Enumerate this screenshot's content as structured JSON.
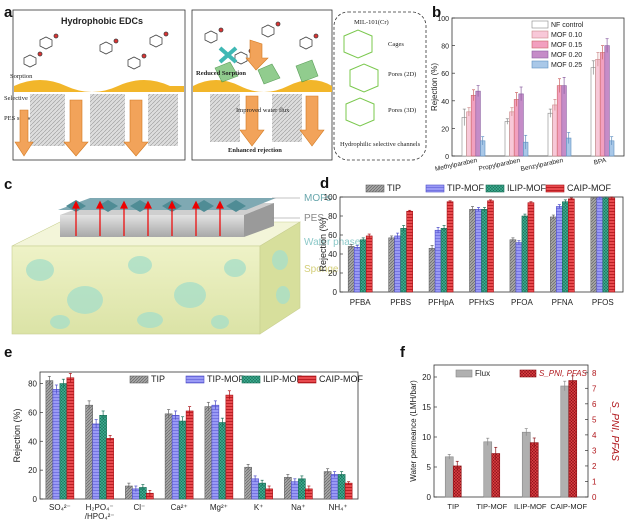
{
  "panels": {
    "a": {
      "label": "a",
      "top_left": "Hydrophobic EDCs",
      "sorption": "Sorption",
      "selective_pa": "Selective PA layer",
      "pes_support": "PES support",
      "reduced_sorption": "Reduced Sorption",
      "improved_flux": "Improved water flux",
      "enhanced_rejection": "Enhanced rejection",
      "mil": "MIL-101(Cr)",
      "cages": "Cages",
      "pores2d": "Pores (2D)",
      "pores3d": "Pores (3D)",
      "channels": "Hydrophilic selective channels"
    },
    "c": {
      "label": "c",
      "mofs": "MOFs",
      "pes": "PES",
      "water": "Water phase",
      "sponge": "Sponge"
    }
  },
  "colors": {
    "b": [
      "#ffffff",
      "#f8c8d8",
      "#f2a0bf",
      "#c58cc8",
      "#a9c8e8"
    ],
    "d_e": [
      "#a6a6a6",
      "#8e8ef0",
      "#2f9a80",
      "#e0272c"
    ],
    "f": [
      "#b0b0b0",
      "#c8242a"
    ]
  },
  "chart_data": [
    {
      "panel": "b",
      "type": "bar",
      "ylabel": "Rejection (%)",
      "ylim": [
        0,
        100
      ],
      "yticks": [
        0,
        20,
        40,
        60,
        80,
        100
      ],
      "categories": [
        "Methylparaben",
        "Propylparaben",
        "Benzylparaben",
        "BPA"
      ],
      "series": [
        {
          "name": "NF control",
          "values": [
            28,
            25,
            31,
            64
          ],
          "errors": [
            6,
            2,
            3,
            5
          ]
        },
        {
          "name": "MOF 0.10",
          "values": [
            32,
            32,
            37,
            70
          ],
          "errors": [
            3,
            3,
            4,
            5
          ]
        },
        {
          "name": "MOF 0.15",
          "values": [
            44,
            41,
            51,
            75
          ],
          "errors": [
            4,
            5,
            5,
            5
          ]
        },
        {
          "name": "MOF 0.20",
          "values": [
            47,
            45,
            51,
            80
          ],
          "errors": [
            4,
            5,
            6,
            5
          ]
        },
        {
          "name": "MOF 0.25",
          "values": [
            11,
            10,
            13,
            11
          ],
          "errors": [
            3,
            5,
            4,
            3
          ]
        }
      ]
    },
    {
      "panel": "d",
      "type": "bar",
      "ylabel": "Rejection (%)",
      "ylim": [
        0,
        100
      ],
      "yticks": [
        0,
        20,
        40,
        60,
        80,
        100
      ],
      "categories": [
        "PFBA",
        "PFBS",
        "PFHpA",
        "PFHxS",
        "PFOA",
        "PFNA",
        "PFOS"
      ],
      "series": [
        {
          "name": "TIP",
          "values": [
            48,
            57,
            46,
            87,
            55,
            79,
            99
          ],
          "errors": [
            2,
            2,
            3,
            3,
            2,
            2,
            1
          ]
        },
        {
          "name": "TIP-MOF",
          "values": [
            47,
            59,
            65,
            87,
            52,
            90,
            99
          ],
          "errors": [
            2,
            3,
            3,
            2,
            2,
            2,
            1
          ]
        },
        {
          "name": "ILIP-MOF",
          "values": [
            55,
            67,
            67,
            87,
            80,
            95,
            99
          ],
          "errors": [
            2,
            3,
            3,
            2,
            2,
            2,
            1
          ]
        },
        {
          "name": "CAIP-MOF",
          "values": [
            59,
            85,
            95,
            96,
            94,
            98,
            99
          ],
          "errors": [
            2,
            1,
            1,
            1,
            1,
            1,
            1
          ]
        }
      ]
    },
    {
      "panel": "e",
      "type": "bar",
      "ylabel": "Rejection (%)",
      "ylim": [
        0,
        88
      ],
      "yticks": [
        0,
        20,
        40,
        60,
        80
      ],
      "categories": [
        "SO₄²⁻",
        "H₂PO₄⁻/HPO₄²⁻",
        "Cl⁻",
        "Ca²⁺",
        "Mg²⁺",
        "K⁺",
        "Na⁺",
        "NH₄⁺"
      ],
      "tick_lines": [
        [
          "SO₄²⁻"
        ],
        [
          "H₂PO₄⁻",
          "/HPO₄²⁻"
        ],
        [
          "Cl⁻"
        ],
        [
          "Ca²⁺"
        ],
        [
          "Mg²⁺"
        ],
        [
          "K⁺"
        ],
        [
          "Na⁺"
        ],
        [
          "NH₄⁺"
        ]
      ],
      "series": [
        {
          "name": "TIP",
          "values": [
            82,
            65,
            9,
            59,
            64,
            22,
            15,
            19
          ],
          "errors": [
            3,
            3,
            2,
            3,
            3,
            2,
            2,
            2
          ]
        },
        {
          "name": "TIP-MOF",
          "values": [
            76,
            52,
            7,
            58,
            65,
            14,
            12,
            17
          ],
          "errors": [
            3,
            3,
            2,
            3,
            3,
            2,
            2,
            2
          ]
        },
        {
          "name": "ILIP-MOF",
          "values": [
            80,
            58,
            8,
            54,
            53,
            11,
            14,
            17
          ],
          "errors": [
            3,
            3,
            2,
            3,
            3,
            2,
            2,
            2
          ]
        },
        {
          "name": "CAIP-MOF",
          "values": [
            84,
            42,
            4,
            61,
            72,
            7,
            7,
            11
          ],
          "errors": [
            3,
            2,
            2,
            3,
            3,
            2,
            2,
            1
          ]
        }
      ]
    },
    {
      "panel": "f",
      "type": "bar",
      "ylabel": "Water permeance (LMH/bar)",
      "ylabel_right": "S_PNI, PFAS",
      "ylim": [
        0,
        22
      ],
      "yticks": [
        0,
        5,
        10,
        15,
        20
      ],
      "ylim_right": [
        0,
        8.5
      ],
      "yticks_right": [
        0,
        1,
        2,
        3,
        4,
        5,
        6,
        7,
        8
      ],
      "categories": [
        "TIP",
        "TIP-MOF",
        "ILIP-MOF",
        "CAIP-MOF"
      ],
      "series": [
        {
          "name": "Flux",
          "values": [
            6.7,
            9.2,
            10.8,
            18.5
          ],
          "errors": [
            0.4,
            0.6,
            0.6,
            0.8
          ],
          "axis": "left"
        },
        {
          "name": "S_PNI, PFAS",
          "values": [
            2.0,
            2.8,
            3.5,
            7.5
          ],
          "errors": [
            0.3,
            0.4,
            0.3,
            0.3
          ],
          "axis": "right"
        }
      ]
    }
  ]
}
